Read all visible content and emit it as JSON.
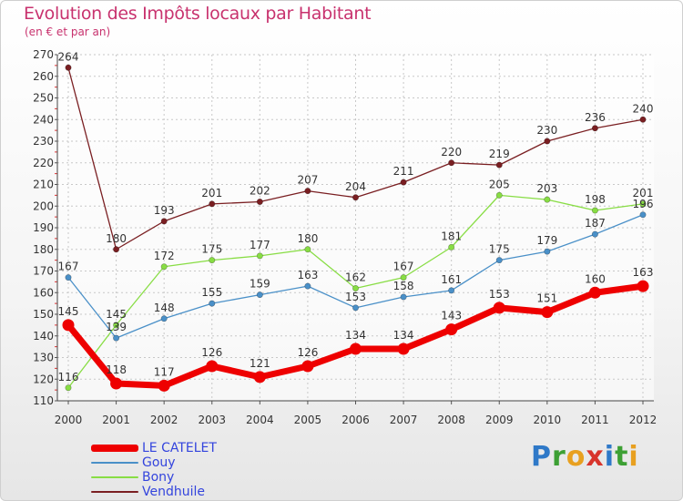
{
  "chart_data": {
    "type": "line",
    "title": "Evolution des Impôts locaux par Habitant",
    "subtitle": "(en € et par an)",
    "xlabel": "",
    "ylabel": "",
    "x": [
      "2000",
      "2001",
      "2002",
      "2003",
      "2004",
      "2005",
      "2006",
      "2007",
      "2008",
      "2009",
      "2010",
      "2011",
      "2012"
    ],
    "ylim": [
      110,
      270
    ],
    "yticks": [
      110,
      120,
      130,
      140,
      150,
      160,
      170,
      180,
      190,
      200,
      210,
      220,
      230,
      240,
      250,
      260,
      270
    ],
    "grid": true,
    "legend_position": "bottom-left",
    "series": [
      {
        "name": "LE CATELET",
        "color": "#ee0000",
        "emphasis": true,
        "values": [
          145,
          118,
          117,
          126,
          121,
          126,
          134,
          134,
          143,
          153,
          151,
          160,
          163
        ]
      },
      {
        "name": "Gouy",
        "color": "#4a90c8",
        "emphasis": false,
        "values": [
          167,
          139,
          148,
          155,
          159,
          163,
          153,
          158,
          161,
          175,
          179,
          187,
          196
        ]
      },
      {
        "name": "Bony",
        "color": "#88dd44",
        "emphasis": false,
        "values": [
          116,
          145,
          172,
          175,
          177,
          180,
          162,
          167,
          181,
          205,
          203,
          198,
          201
        ]
      },
      {
        "name": "Vendhuile",
        "color": "#7a1f22",
        "emphasis": false,
        "values": [
          264,
          180,
          193,
          201,
          202,
          207,
          204,
          211,
          220,
          219,
          230,
          236,
          240
        ]
      }
    ]
  },
  "brand": {
    "letters": [
      {
        "ch": "P",
        "color": "#2f79c8"
      },
      {
        "ch": "r",
        "color": "#3da034"
      },
      {
        "ch": "o",
        "color": "#e8a020"
      },
      {
        "ch": "x",
        "color": "#d8342c"
      },
      {
        "ch": "i",
        "color": "#2f79c8"
      },
      {
        "ch": "t",
        "color": "#3da034"
      },
      {
        "ch": "i",
        "color": "#e8a020"
      }
    ]
  }
}
